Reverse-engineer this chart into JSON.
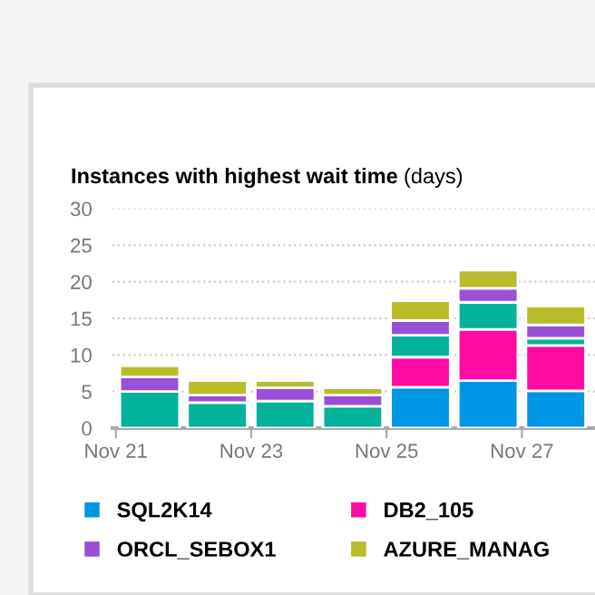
{
  "chart_data": {
    "type": "bar",
    "stacked": true,
    "title": "Instances with highest wait time (days)",
    "categories": [
      "Nov 21",
      null,
      "Nov 23",
      null,
      "Nov 25",
      null,
      "Nov 27"
    ],
    "series": [
      {
        "name": "SQL2K14",
        "color": "#0096e6",
        "values": [
          0,
          0,
          0,
          0,
          5.6,
          6.5,
          5.1
        ]
      },
      {
        "name": "DB2_105",
        "color": "#ff0aa5",
        "values": [
          0,
          0,
          0,
          0,
          4.1,
          7,
          6.2
        ]
      },
      {
        "color": "#00b39a",
        "values": [
          5,
          3.5,
          3.7,
          3,
          3,
          3.7,
          1
        ]
      },
      {
        "name": "ORCL_SEBOX1",
        "color": "#9a4fd6",
        "values": [
          2,
          1,
          1.8,
          1.5,
          2,
          1.9,
          1.8
        ]
      },
      {
        "name": "AZURE_MANAG",
        "color": "#b8bb2a",
        "values": [
          1.5,
          2,
          1,
          1,
          2.7,
          2.5,
          2.6
        ]
      }
    ],
    "ylim": [
      0,
      30
    ],
    "yticks": [
      0,
      5,
      10,
      15,
      20,
      25,
      30
    ],
    "grid": "y",
    "legend": "bottom"
  }
}
